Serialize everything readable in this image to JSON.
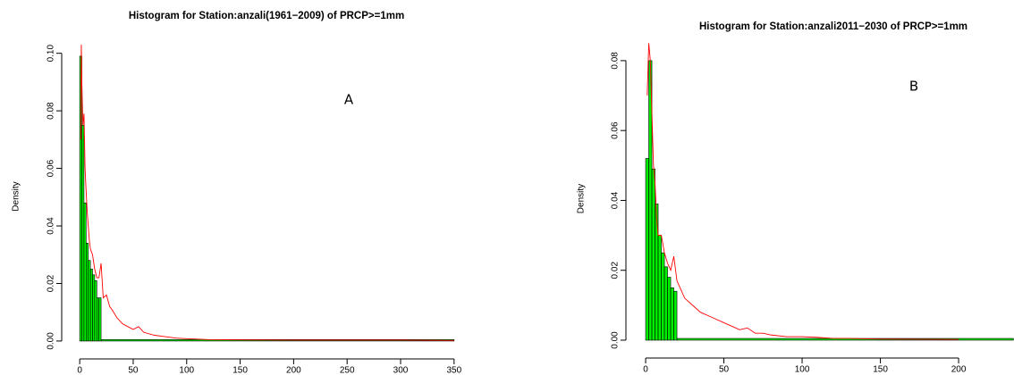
{
  "chart_data": [
    {
      "type": "histogram",
      "title": "Histogram for Station:anzali(1961−2009) of PRCP>=1mm",
      "y_label": "Density",
      "annotations": [
        "A"
      ],
      "bins": [
        0,
        2,
        4,
        6,
        8,
        10,
        12,
        14,
        16,
        18,
        20,
        350
      ],
      "values": [
        0.099,
        0.075,
        0.048,
        0.034,
        0.028,
        0.025,
        0.023,
        0.021,
        0.015,
        0.015,
        0.0005
      ],
      "color": "#00ee00",
      "edge_color": "#000000",
      "line": {
        "color": "#ff0000",
        "x": [
          1,
          1.5,
          2,
          3,
          4,
          5,
          6,
          7,
          8,
          9,
          10,
          12,
          14,
          16,
          18,
          20,
          22,
          25,
          28,
          30,
          35,
          40,
          45,
          50,
          55,
          60,
          70,
          80,
          90,
          100,
          120,
          150,
          200,
          250,
          300,
          350
        ],
        "y": [
          0.07,
          0.103,
          0.09,
          0.075,
          0.079,
          0.06,
          0.052,
          0.045,
          0.04,
          0.035,
          0.032,
          0.03,
          0.025,
          0.022,
          0.022,
          0.027,
          0.015,
          0.016,
          0.012,
          0.011,
          0.008,
          0.006,
          0.005,
          0.004,
          0.005,
          0.003,
          0.002,
          0.0015,
          0.001,
          0.0008,
          0.0005,
          0.0004,
          0.0003,
          0.0003,
          0.0003,
          0.0002
        ]
      },
      "xlim": [
        -16,
        356
      ],
      "ylim": [
        -0.0025,
        0.103
      ],
      "xticks": [
        0,
        50,
        100,
        150,
        200,
        250,
        300,
        350
      ],
      "yticks": [
        {
          "value": 0,
          "label": "0.00"
        },
        {
          "value": 0.02,
          "label": "0.02"
        },
        {
          "value": 0.04,
          "label": "0.04"
        },
        {
          "value": 0.06,
          "label": "0.06"
        },
        {
          "value": 0.08,
          "label": "0.08"
        },
        {
          "value": 0.1,
          "label": "0.10"
        }
      ]
    },
    {
      "type": "histogram",
      "title": "Histogram for Station:anzali2011−2030 of PRCP>=1mm",
      "y_label": "Density",
      "annotations": [
        "B"
      ],
      "bins": [
        0,
        2,
        4,
        6,
        8,
        10,
        12,
        14,
        16,
        18,
        20,
        235
      ],
      "values": [
        0.052,
        0.08,
        0.049,
        0.039,
        0.03,
        0.025,
        0.021,
        0.018,
        0.015,
        0.014,
        0.0005
      ],
      "color": "#00ee00",
      "edge_color": "#000000",
      "line": {
        "color": "#ff0000",
        "x": [
          1,
          2,
          3,
          4,
          5,
          6,
          7,
          8,
          10,
          12,
          14,
          16,
          18,
          20,
          22,
          25,
          30,
          35,
          40,
          45,
          50,
          55,
          60,
          65,
          70,
          75,
          80,
          90,
          100,
          110,
          120,
          130,
          150,
          200
        ],
        "y": [
          0.07,
          0.085,
          0.08,
          0.065,
          0.05,
          0.045,
          0.035,
          0.03,
          0.03,
          0.025,
          0.022,
          0.02,
          0.024,
          0.017,
          0.015,
          0.012,
          0.01,
          0.008,
          0.007,
          0.006,
          0.005,
          0.004,
          0.003,
          0.0035,
          0.002,
          0.002,
          0.0015,
          0.001,
          0.001,
          0.0008,
          0.0005,
          0.0005,
          0.0003,
          0.0002
        ]
      },
      "xlim": [
        -12.6,
        235.4
      ],
      "ylim": [
        -0.0023,
        0.0833
      ],
      "xticks": [
        0,
        50,
        100,
        150,
        200
      ],
      "yticks": [
        {
          "value": 0,
          "label": "0.00"
        },
        {
          "value": 0.02,
          "label": "0.02"
        },
        {
          "value": 0.04,
          "label": "0.04"
        },
        {
          "value": 0.06,
          "label": "0.06"
        },
        {
          "value": 0.08,
          "label": "0.08"
        }
      ]
    }
  ]
}
